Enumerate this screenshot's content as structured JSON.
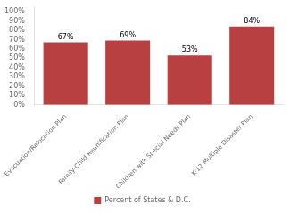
{
  "chart_data": {
    "type": "bar",
    "categories": [
      "Evacuation/Relocation Plan",
      "Family-Child Reunification Plan",
      "Children with Special Needs Plan",
      "K-12 Multiple Disaster Plan"
    ],
    "series": [
      {
        "name": "Percent of States & D.C.",
        "color": "#b94040",
        "values": [
          67,
          69,
          53,
          84
        ],
        "value_labels": [
          "67%",
          "69%",
          "53%",
          "84%"
        ]
      }
    ],
    "ylim": [
      0,
      105
    ],
    "yticks": [
      {
        "value": 0,
        "label": "0%"
      },
      {
        "value": 10,
        "label": "10%"
      },
      {
        "value": 20,
        "label": "20%"
      },
      {
        "value": 30,
        "label": "30%"
      },
      {
        "value": 40,
        "label": "40%"
      },
      {
        "value": 50,
        "label": "50%"
      },
      {
        "value": 60,
        "label": "60%"
      },
      {
        "value": 70,
        "label": "70%"
      },
      {
        "value": 80,
        "label": "80%"
      },
      {
        "value": 90,
        "label": "90%"
      },
      {
        "value": 100,
        "label": "100%"
      }
    ],
    "grid": false,
    "legend": "bottom",
    "data_labels": true
  }
}
